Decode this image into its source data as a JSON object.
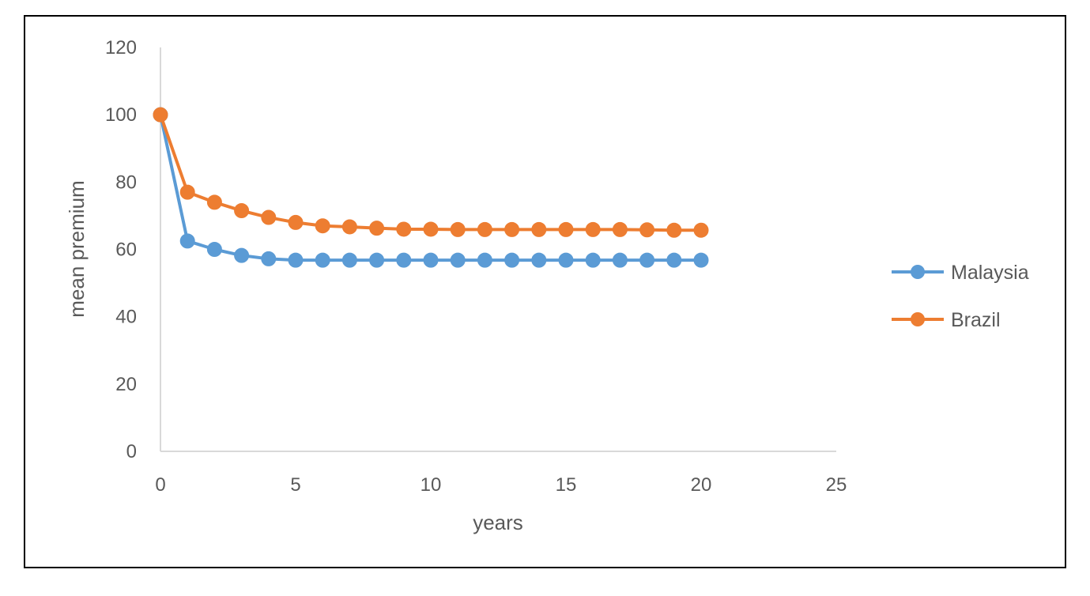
{
  "chart_data": {
    "type": "line",
    "title": "",
    "xlabel": "years",
    "ylabel": "mean premium",
    "xlim": [
      0,
      25
    ],
    "ylim": [
      0,
      120
    ],
    "xticks": [
      0,
      5,
      10,
      15,
      20,
      25
    ],
    "yticks": [
      0,
      20,
      40,
      60,
      80,
      100,
      120
    ],
    "grid": false,
    "legend": "right",
    "x": [
      0,
      1,
      2,
      3,
      4,
      5,
      6,
      7,
      8,
      9,
      10,
      11,
      12,
      13,
      14,
      15,
      16,
      17,
      18,
      19,
      20
    ],
    "series": [
      {
        "name": "Malaysia",
        "color": "#5B9BD5",
        "values": [
          100,
          62.5,
          60,
          58.2,
          57.2,
          56.8,
          56.8,
          56.8,
          56.8,
          56.8,
          56.8,
          56.8,
          56.8,
          56.8,
          56.8,
          56.8,
          56.8,
          56.8,
          56.8,
          56.8,
          56.8
        ]
      },
      {
        "name": "Brazil",
        "color": "#ED7D31",
        "values": [
          100,
          77,
          74,
          71.5,
          69.5,
          68,
          67,
          66.7,
          66.3,
          66,
          66,
          65.9,
          65.9,
          65.9,
          65.9,
          65.9,
          65.9,
          65.9,
          65.8,
          65.7,
          65.7
        ]
      }
    ]
  }
}
